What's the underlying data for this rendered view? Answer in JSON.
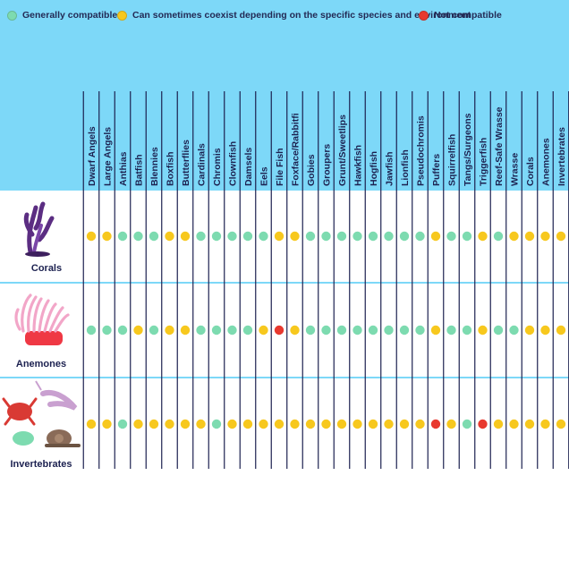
{
  "legend": [
    {
      "key": "green",
      "label": "Generally compatible",
      "color": "#7ddbb0"
    },
    {
      "key": "yellow",
      "label": "Can sometimes coexist depending on the specific species and environment",
      "color": "#f7c81e"
    },
    {
      "key": "red",
      "label": "Not compatible",
      "color": "#e8392f"
    }
  ],
  "colors": {
    "header_bg": "#7dd8f8",
    "grid_line": "#1c2150",
    "row_divider": "#7dd8f8",
    "text": "#1c2150"
  },
  "icons": {
    "corals": "coral-icon",
    "anemones": "anemone-icon",
    "invertebrates": "crab-shrimp-snail-icon"
  },
  "chart_data": {
    "type": "table",
    "title": "",
    "categories": [
      "Dwarf Angels",
      "Large Angels",
      "Anthias",
      "Batfish",
      "Blennies",
      "Boxfish",
      "Butterflies",
      "Cardinals",
      "Chromis",
      "Clownfish",
      "Damsels",
      "Eels",
      "File Fish",
      "Foxface/Rabbitfi",
      "Gobies",
      "Groupers",
      "Grunt/Sweetlips",
      "Hawkfish",
      "Hogfish",
      "Jawfish",
      "Lionfish",
      "Pseudochromis",
      "Puffers",
      "Squirrelfish",
      "Tangs/Surgeons",
      "Triggerfish",
      "Reef-Safe Wrasse",
      "Wrasse",
      "Corals",
      "Anemones",
      "Invertebrates"
    ],
    "rows": [
      {
        "label": "Corals",
        "values": [
          "yellow",
          "yellow",
          "green",
          "green",
          "green",
          "yellow",
          "yellow",
          "green",
          "green",
          "green",
          "green",
          "green",
          "yellow",
          "yellow",
          "green",
          "green",
          "green",
          "green",
          "green",
          "green",
          "green",
          "green",
          "yellow",
          "green",
          "green",
          "yellow",
          "green",
          "yellow",
          "yellow",
          "yellow",
          "yellow"
        ]
      },
      {
        "label": "Anemones",
        "values": [
          "green",
          "green",
          "green",
          "yellow",
          "green",
          "yellow",
          "yellow",
          "green",
          "green",
          "green",
          "green",
          "yellow",
          "red",
          "yellow",
          "green",
          "green",
          "green",
          "green",
          "green",
          "green",
          "green",
          "green",
          "yellow",
          "green",
          "green",
          "yellow",
          "green",
          "green",
          "yellow",
          "yellow",
          "yellow"
        ]
      },
      {
        "label": "Invertebrates",
        "values": [
          "yellow",
          "yellow",
          "green",
          "yellow",
          "yellow",
          "yellow",
          "yellow",
          "yellow",
          "green",
          "yellow",
          "yellow",
          "yellow",
          "yellow",
          "yellow",
          "yellow",
          "yellow",
          "yellow",
          "yellow",
          "yellow",
          "yellow",
          "yellow",
          "yellow",
          "red",
          "yellow",
          "green",
          "red",
          "yellow",
          "yellow",
          "yellow",
          "yellow",
          "yellow"
        ]
      }
    ]
  }
}
